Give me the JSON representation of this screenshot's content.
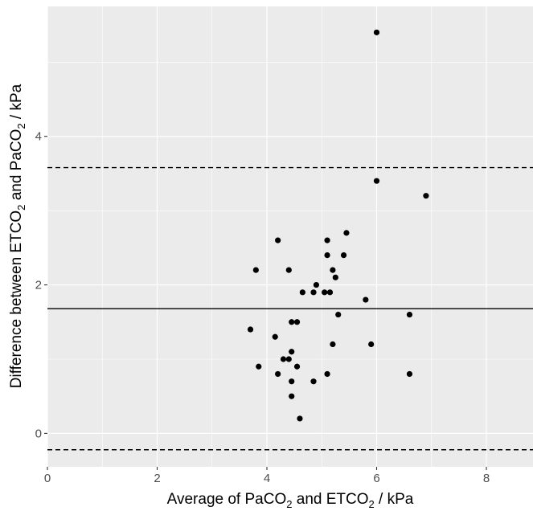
{
  "chart_data": {
    "type": "scatter",
    "title": "",
    "xlabel": {
      "prefix": "Average of PaCO",
      "sub1": "2",
      "mid": " and ETCO",
      "sub2": "2",
      "suffix": "  / kPa"
    },
    "ylabel": {
      "prefix": "Difference between ETCO",
      "sub1": "2",
      "mid": " and PaCO",
      "sub2": "2",
      "suffix": "  / kPa"
    },
    "xlim": [
      0,
      8.85
    ],
    "ylim": [
      -0.45,
      5.75
    ],
    "x_ticks": [
      0,
      2,
      4,
      6,
      8
    ],
    "y_ticks": [
      0,
      2,
      4
    ],
    "grid": true,
    "background": "#ebebeb",
    "grid_color": "#ffffff",
    "point_color": "#000000",
    "mean_line": 1.68,
    "limits_of_agreement": [
      3.58,
      -0.22
    ],
    "points": [
      {
        "x": 6.0,
        "y": 5.4
      },
      {
        "x": 6.0,
        "y": 3.4
      },
      {
        "x": 6.9,
        "y": 3.2
      },
      {
        "x": 5.45,
        "y": 2.7
      },
      {
        "x": 4.2,
        "y": 2.6
      },
      {
        "x": 5.1,
        "y": 2.6
      },
      {
        "x": 5.1,
        "y": 2.4
      },
      {
        "x": 5.4,
        "y": 2.4
      },
      {
        "x": 3.8,
        "y": 2.2
      },
      {
        "x": 4.4,
        "y": 2.2
      },
      {
        "x": 5.2,
        "y": 2.2
      },
      {
        "x": 5.25,
        "y": 2.1
      },
      {
        "x": 4.9,
        "y": 2.0
      },
      {
        "x": 4.65,
        "y": 1.9
      },
      {
        "x": 4.85,
        "y": 1.9
      },
      {
        "x": 5.05,
        "y": 1.9
      },
      {
        "x": 5.15,
        "y": 1.9
      },
      {
        "x": 5.8,
        "y": 1.8
      },
      {
        "x": 5.3,
        "y": 1.6
      },
      {
        "x": 6.6,
        "y": 1.6
      },
      {
        "x": 4.45,
        "y": 1.5
      },
      {
        "x": 4.55,
        "y": 1.5
      },
      {
        "x": 3.7,
        "y": 1.4
      },
      {
        "x": 4.15,
        "y": 1.3
      },
      {
        "x": 5.2,
        "y": 1.2
      },
      {
        "x": 5.9,
        "y": 1.2
      },
      {
        "x": 4.45,
        "y": 1.1
      },
      {
        "x": 4.3,
        "y": 1.0
      },
      {
        "x": 4.4,
        "y": 1.0
      },
      {
        "x": 3.85,
        "y": 0.9
      },
      {
        "x": 4.55,
        "y": 0.9
      },
      {
        "x": 4.2,
        "y": 0.8
      },
      {
        "x": 5.1,
        "y": 0.8
      },
      {
        "x": 6.6,
        "y": 0.8
      },
      {
        "x": 4.45,
        "y": 0.7
      },
      {
        "x": 4.85,
        "y": 0.7
      },
      {
        "x": 4.45,
        "y": 0.5
      },
      {
        "x": 4.6,
        "y": 0.2
      }
    ]
  }
}
